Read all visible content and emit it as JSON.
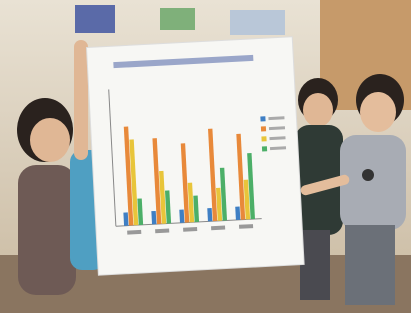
{
  "chart_data": {
    "type": "bar",
    "categories": [
      null,
      null,
      null,
      null,
      null
    ],
    "series": [
      {
        "color": "#3f7fc4",
        "values": [
          10,
          10,
          10,
          10,
          10
        ]
      },
      {
        "color": "#e8893a",
        "values": [
          75,
          65,
          60,
          70,
          65
        ]
      },
      {
        "color": "#e8c53a",
        "values": [
          65,
          40,
          30,
          25,
          30
        ]
      },
      {
        "color": "#4caf68",
        "values": [
          20,
          25,
          20,
          40,
          50
        ]
      }
    ],
    "ylim": [
      0,
      100
    ]
  }
}
